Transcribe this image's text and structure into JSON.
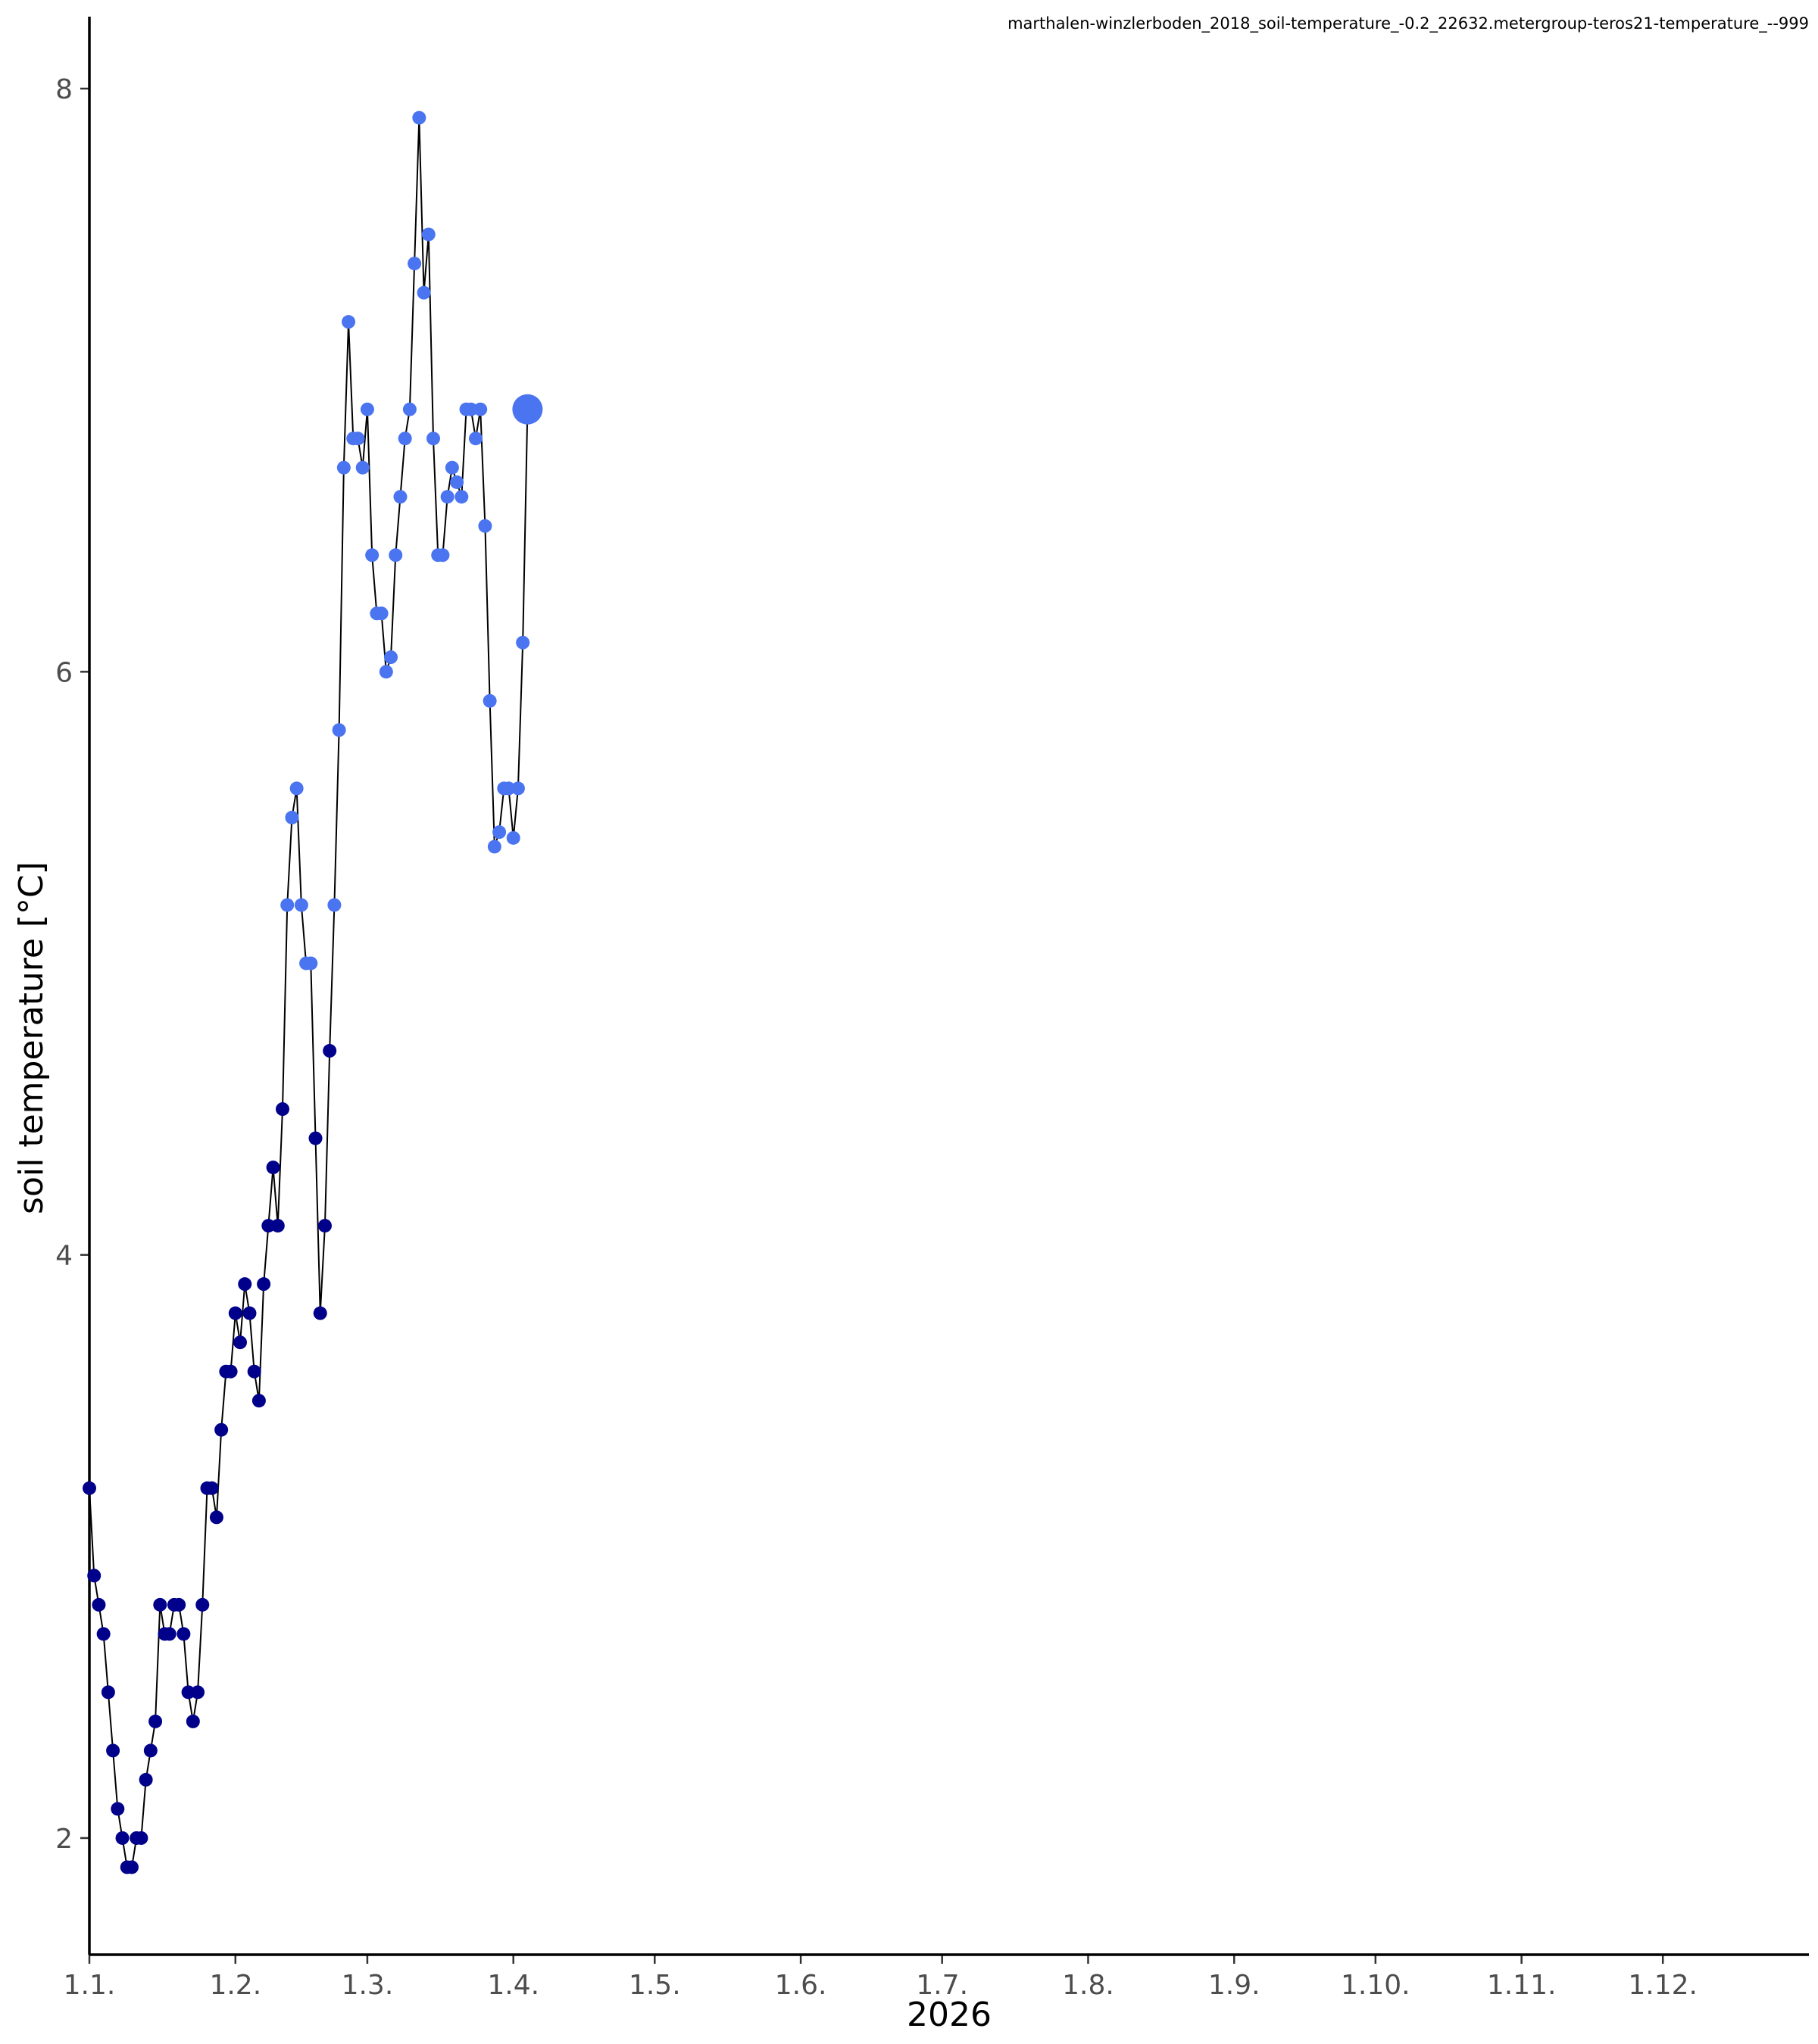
{
  "chart_data": {
    "type": "scatter",
    "title": "",
    "subtitle": "marthalen-winzlerboden_2018_soil-temperature_-0.2_22632.metergroup-teros21-temperature_--999",
    "xlabel": "2026",
    "ylabel": "soil temperature [°C]",
    "xlim": [
      0,
      365
    ],
    "ylim": [
      1.6,
      8.2
    ],
    "x_unit": "day of year 2026 (0 = 1 Jan)",
    "x_ticks": [
      0,
      31,
      59,
      90,
      120,
      151,
      181,
      212,
      243,
      273,
      304,
      334
    ],
    "x_tick_labels": [
      "1.1.",
      "1.2.",
      "1.3.",
      "1.4.",
      "1.5.",
      "1.6.",
      "1.7.",
      "1.8.",
      "1.9.",
      "1.10.",
      "1.11.",
      "1.12."
    ],
    "y_ticks": [
      2,
      4,
      6,
      8
    ],
    "y_tick_labels": [
      "2",
      "4",
      "6",
      "8"
    ],
    "grid": false,
    "legend": "none",
    "line_color": "#000000",
    "colors": {
      "cold": "#00008b",
      "warm": "#4a74f0"
    },
    "color_threshold": 5.0,
    "series": [
      {
        "x": [
          0,
          1,
          2,
          3,
          4,
          5,
          6,
          7,
          8,
          9,
          10,
          11,
          12,
          13,
          14,
          15,
          16,
          17,
          18,
          19,
          20,
          21,
          22,
          23,
          24,
          25,
          26,
          27,
          28,
          29,
          30,
          31,
          32,
          33,
          34,
          35,
          36,
          37,
          38,
          39,
          40,
          41,
          42,
          43,
          44,
          45,
          46,
          47,
          48,
          49,
          50,
          51,
          52,
          53,
          54,
          55,
          56,
          57,
          58,
          59,
          60,
          61,
          62,
          63,
          64,
          65,
          66,
          67,
          68,
          69,
          70,
          71,
          72,
          73,
          74,
          75,
          76,
          77,
          78,
          79,
          80,
          81,
          82,
          83,
          84,
          85,
          86,
          87,
          88,
          89,
          90,
          91,
          92,
          93
        ],
        "y": [
          3.2,
          2.9,
          2.8,
          2.7,
          2.5,
          2.3,
          2.1,
          2.0,
          1.9,
          1.9,
          2.0,
          2.0,
          2.2,
          2.3,
          2.4,
          2.8,
          2.7,
          2.7,
          2.8,
          2.8,
          2.7,
          2.5,
          2.4,
          2.5,
          2.8,
          3.2,
          3.2,
          3.1,
          3.4,
          3.6,
          3.6,
          3.8,
          3.7,
          3.9,
          3.8,
          3.6,
          3.5,
          3.9,
          4.1,
          4.3,
          4.1,
          4.5,
          5.2,
          5.5,
          5.6,
          5.2,
          5.0,
          5.0,
          4.4,
          3.8,
          4.1,
          4.7,
          5.2,
          5.8,
          6.7,
          7.2,
          6.8,
          6.8,
          6.7,
          6.9,
          6.4,
          6.2,
          6.2,
          6.0,
          6.05,
          6.4,
          6.6,
          6.8,
          6.9,
          7.4,
          7.9,
          7.3,
          7.5,
          6.8,
          6.4,
          6.4,
          6.6,
          6.7,
          6.65,
          6.6,
          6.9,
          6.9,
          6.8,
          6.9,
          6.5,
          5.9,
          5.4,
          5.45,
          5.6,
          5.6,
          5.43,
          5.6,
          6.1,
          6.9
        ]
      }
    ],
    "highlight_last_point": true
  }
}
